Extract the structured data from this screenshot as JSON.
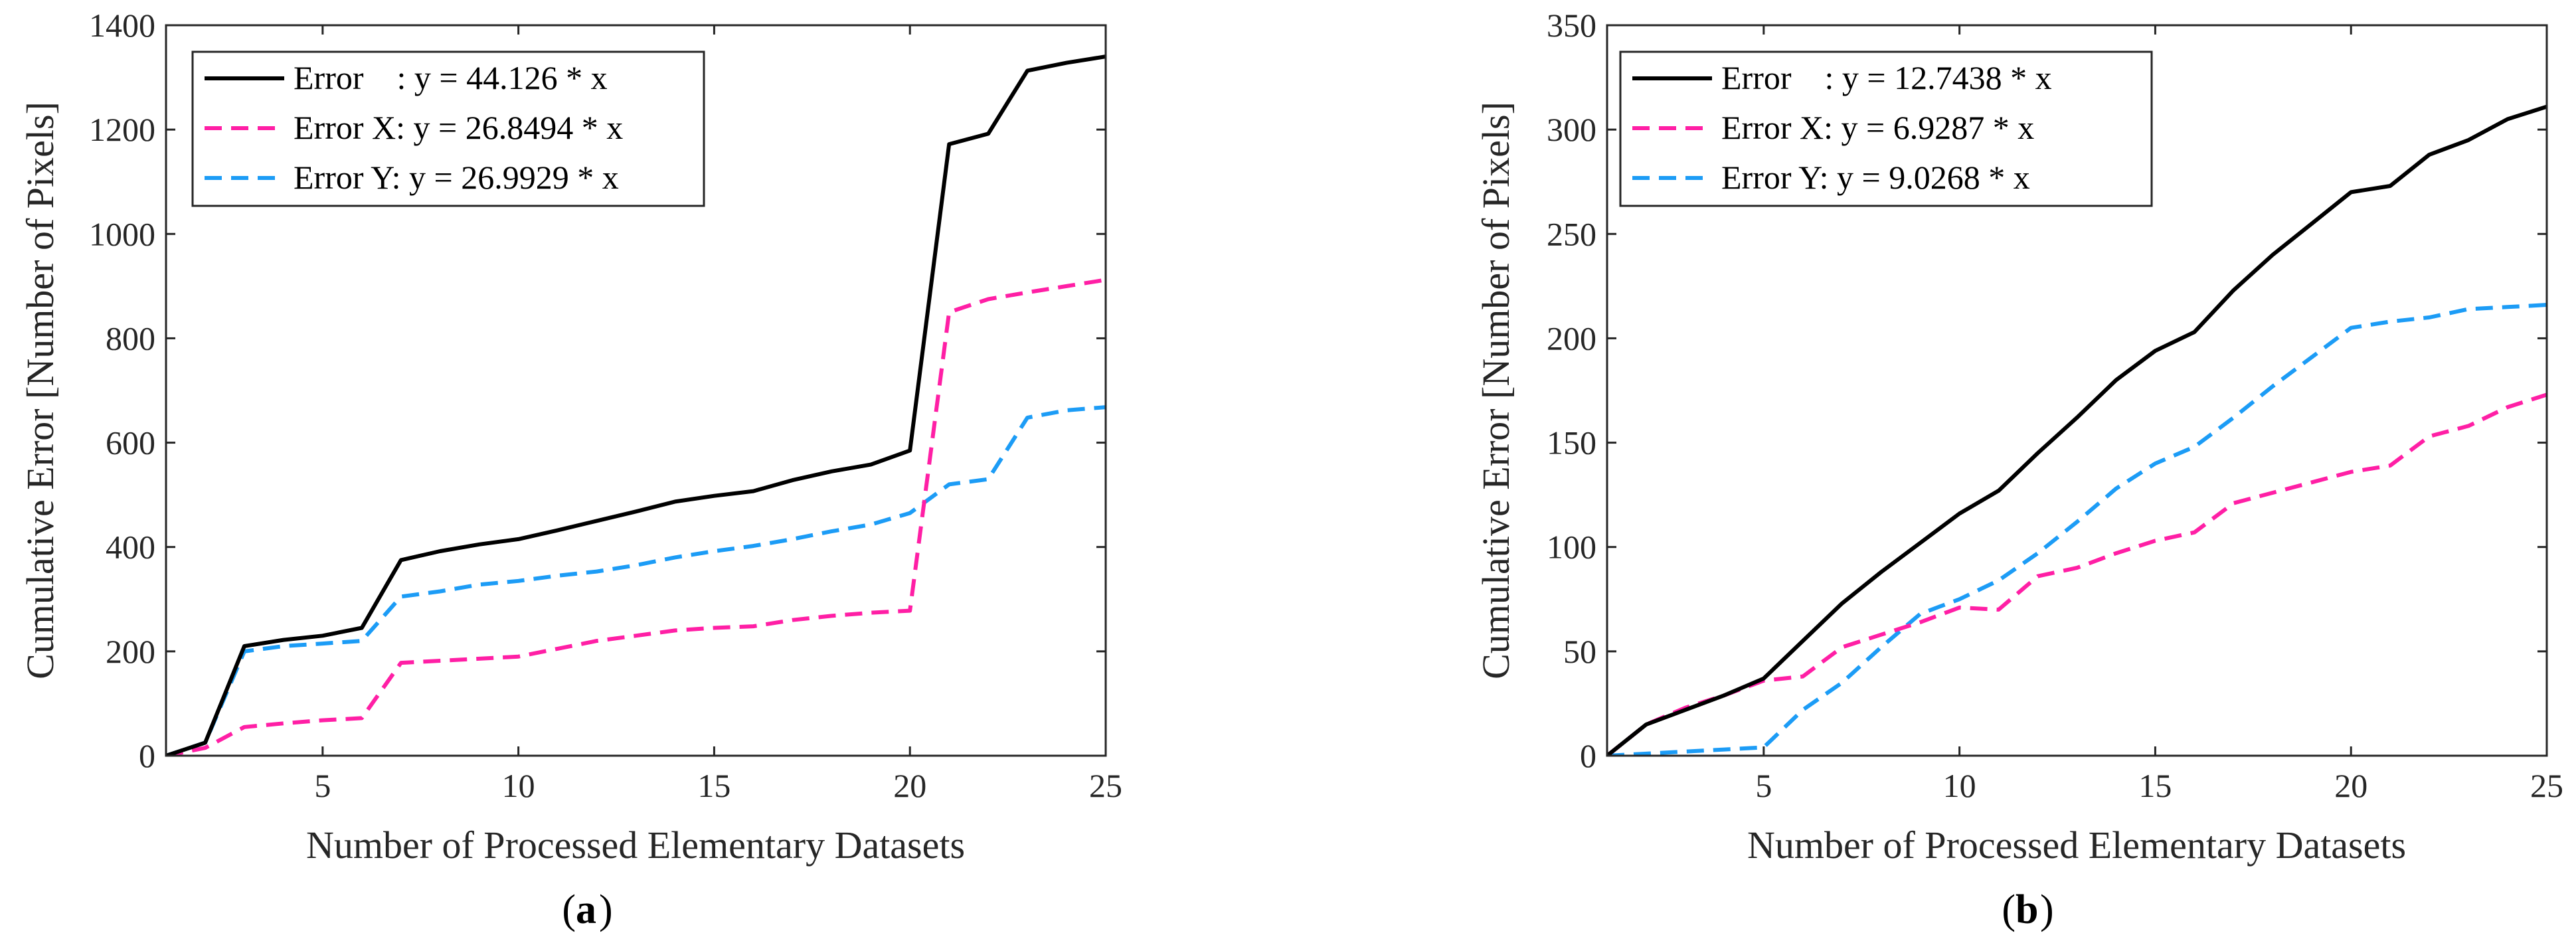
{
  "chart_data": [
    {
      "type": "line",
      "panel_label": "a",
      "panel_paren_open": "(",
      "panel_paren_close": ")",
      "xlabel": "Number of Processed Elementary Datasets",
      "ylabel": "Cumulative Error [Number of Pixels]",
      "xlim": [
        1,
        25
      ],
      "ylim": [
        0,
        1400
      ],
      "xticks": [
        5,
        10,
        15,
        20,
        25
      ],
      "yticks": [
        0,
        200,
        400,
        600,
        800,
        1000,
        1200,
        1400
      ],
      "grid": false,
      "legend_position": "top-left",
      "x": [
        1,
        2,
        3,
        4,
        5,
        6,
        7,
        8,
        9,
        10,
        11,
        12,
        13,
        14,
        15,
        16,
        17,
        18,
        19,
        20,
        21,
        22,
        23,
        24,
        25
      ],
      "series": [
        {
          "name": "Error    : y = 44.126 * x",
          "color": "#000000",
          "style": "solid",
          "values": [
            0,
            25,
            210,
            222,
            230,
            245,
            375,
            392,
            405,
            415,
            432,
            450,
            468,
            487,
            498,
            507,
            528,
            545,
            558,
            585,
            1172,
            1192,
            1313,
            1328,
            1340
          ]
        },
        {
          "name": "Error X: y = 26.8494 * x",
          "color": "#ff1fa5",
          "style": "dashed",
          "values": [
            0,
            15,
            55,
            62,
            68,
            72,
            178,
            182,
            186,
            190,
            205,
            220,
            230,
            240,
            245,
            248,
            260,
            268,
            274,
            278,
            850,
            875,
            888,
            900,
            912
          ]
        },
        {
          "name": "Error Y: y = 26.9929 * x",
          "color": "#1c9cf6",
          "style": "dashed",
          "values": [
            0,
            25,
            200,
            210,
            215,
            220,
            305,
            315,
            328,
            335,
            345,
            353,
            365,
            380,
            392,
            402,
            415,
            430,
            443,
            465,
            520,
            530,
            648,
            662,
            668
          ]
        }
      ]
    },
    {
      "type": "line",
      "panel_label": "b",
      "panel_paren_open": "(",
      "panel_paren_close": ")",
      "xlabel": "Number of Processed Elementary Datasets",
      "ylabel": "Cumulative Error [Number of Pixels]",
      "xlim": [
        1,
        25
      ],
      "ylim": [
        0,
        350
      ],
      "xticks": [
        5,
        10,
        15,
        20,
        25
      ],
      "yticks": [
        0,
        50,
        100,
        150,
        200,
        250,
        300,
        350
      ],
      "grid": false,
      "legend_position": "top-left",
      "x": [
        1,
        2,
        3,
        4,
        5,
        6,
        7,
        8,
        9,
        10,
        11,
        12,
        13,
        14,
        15,
        16,
        17,
        18,
        19,
        20,
        21,
        22,
        23,
        24,
        25
      ],
      "series": [
        {
          "name": "Error    : y = 12.7438 * x",
          "color": "#000000",
          "style": "solid",
          "values": [
            0,
            15,
            22,
            29,
            37,
            55,
            73,
            88,
            102,
            116,
            127,
            145,
            162,
            180,
            194,
            203,
            223,
            240,
            255,
            270,
            273,
            288,
            295,
            305,
            311
          ]
        },
        {
          "name": "Error X: y = 6.9287 * x",
          "color": "#ff1fa5",
          "style": "dashed",
          "values": [
            0,
            15,
            23,
            29,
            36,
            38,
            52,
            58,
            64,
            71,
            70,
            86,
            90,
            97,
            103,
            107,
            121,
            126,
            131,
            136,
            139,
            153,
            158,
            167,
            173
          ]
        },
        {
          "name": "Error Y: y = 9.0268 * x",
          "color": "#1c9cf6",
          "style": "dashed",
          "values": [
            0,
            1,
            2,
            3,
            4,
            22,
            35,
            52,
            68,
            75,
            84,
            97,
            112,
            128,
            140,
            148,
            162,
            177,
            191,
            205,
            208,
            210,
            214,
            215,
            216
          ]
        }
      ]
    }
  ]
}
